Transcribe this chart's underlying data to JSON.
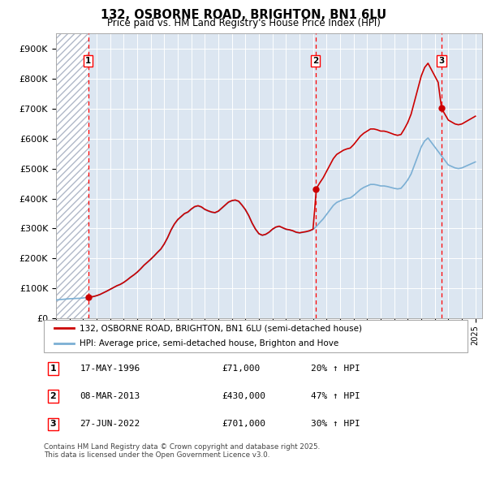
{
  "title1": "132, OSBORNE ROAD, BRIGHTON, BN1 6LU",
  "title2": "Price paid vs. HM Land Registry's House Price Index (HPI)",
  "legend_line1": "132, OSBORNE ROAD, BRIGHTON, BN1 6LU (semi-detached house)",
  "legend_line2": "HPI: Average price, semi-detached house, Brighton and Hove",
  "footer": "Contains HM Land Registry data © Crown copyright and database right 2025.\nThis data is licensed under the Open Government Licence v3.0.",
  "sale_color": "#cc0000",
  "hpi_color": "#7bafd4",
  "bg_color": "#dce6f1",
  "hatch_color": "#b8c8d8",
  "ylim": [
    0,
    950000
  ],
  "yticks": [
    0,
    100000,
    200000,
    300000,
    400000,
    500000,
    600000,
    700000,
    800000,
    900000
  ],
  "ytick_labels": [
    "£0",
    "£100K",
    "£200K",
    "£300K",
    "£400K",
    "£500K",
    "£600K",
    "£700K",
    "£800K",
    "£900K"
  ],
  "xmin": 1994.0,
  "xmax": 2025.5,
  "sales": [
    {
      "date": 1996.38,
      "price": 71000,
      "label": "1"
    },
    {
      "date": 2013.18,
      "price": 430000,
      "label": "2"
    },
    {
      "date": 2022.49,
      "price": 701000,
      "label": "3"
    }
  ],
  "annotation_rows": [
    {
      "label": "1",
      "date": "17-MAY-1996",
      "price": "£71,000",
      "change": "20% ↑ HPI"
    },
    {
      "label": "2",
      "date": "08-MAR-2013",
      "price": "£430,000",
      "change": "47% ↑ HPI"
    },
    {
      "label": "3",
      "date": "27-JUN-2022",
      "price": "£701,000",
      "change": "30% ↑ HPI"
    }
  ],
  "hpi_quarterly": {
    "years": [
      1994.0,
      1994.25,
      1994.5,
      1994.75,
      1995.0,
      1995.25,
      1995.5,
      1995.75,
      1996.0,
      1996.25,
      1996.5,
      1996.75,
      1997.0,
      1997.25,
      1997.5,
      1997.75,
      1998.0,
      1998.25,
      1998.5,
      1998.75,
      1999.0,
      1999.25,
      1999.5,
      1999.75,
      2000.0,
      2000.25,
      2000.5,
      2000.75,
      2001.0,
      2001.25,
      2001.5,
      2001.75,
      2002.0,
      2002.25,
      2002.5,
      2002.75,
      2003.0,
      2003.25,
      2003.5,
      2003.75,
      2004.0,
      2004.25,
      2004.5,
      2004.75,
      2005.0,
      2005.25,
      2005.5,
      2005.75,
      2006.0,
      2006.25,
      2006.5,
      2006.75,
      2007.0,
      2007.25,
      2007.5,
      2007.75,
      2008.0,
      2008.25,
      2008.5,
      2008.75,
      2009.0,
      2009.25,
      2009.5,
      2009.75,
      2010.0,
      2010.25,
      2010.5,
      2010.75,
      2011.0,
      2011.25,
      2011.5,
      2011.75,
      2012.0,
      2012.25,
      2012.5,
      2012.75,
      2013.0,
      2013.25,
      2013.5,
      2013.75,
      2014.0,
      2014.25,
      2014.5,
      2014.75,
      2015.0,
      2015.25,
      2015.5,
      2015.75,
      2016.0,
      2016.25,
      2016.5,
      2016.75,
      2017.0,
      2017.25,
      2017.5,
      2017.75,
      2018.0,
      2018.25,
      2018.5,
      2018.75,
      2019.0,
      2019.25,
      2019.5,
      2019.75,
      2020.0,
      2020.25,
      2020.5,
      2020.75,
      2021.0,
      2021.25,
      2021.5,
      2021.75,
      2022.0,
      2022.25,
      2022.5,
      2022.75,
      2023.0,
      2023.25,
      2023.5,
      2023.75,
      2024.0,
      2024.25,
      2024.5,
      2024.75,
      2025.0
    ],
    "values": [
      62000,
      63000,
      64000,
      65000,
      66000,
      66500,
      67000,
      67500,
      68500,
      70000,
      71500,
      73000,
      76000,
      80000,
      85500,
      91000,
      97000,
      103000,
      109000,
      113500,
      120000,
      128000,
      137000,
      145000,
      154000,
      165000,
      177000,
      187000,
      197000,
      208000,
      220000,
      231000,
      248000,
      269000,
      294000,
      314000,
      329000,
      339000,
      349000,
      354000,
      364000,
      372000,
      375000,
      371000,
      363000,
      358000,
      354000,
      352000,
      357000,
      367000,
      377000,
      387000,
      392000,
      394000,
      390000,
      377000,
      362000,
      342000,
      317000,
      297000,
      282000,
      277000,
      280000,
      287000,
      297000,
      304000,
      307000,
      302000,
      297000,
      295000,
      292000,
      287000,
      285000,
      287000,
      289000,
      292000,
      297000,
      307000,
      320000,
      332000,
      347000,
      362000,
      377000,
      387000,
      392000,
      397000,
      400000,
      402000,
      410000,
      420000,
      430000,
      437000,
      442000,
      447000,
      447000,
      445000,
      442000,
      442000,
      440000,
      437000,
      434000,
      432000,
      434000,
      447000,
      462000,
      482000,
      512000,
      542000,
      572000,
      592000,
      602000,
      587000,
      572000,
      557000,
      542000,
      527000,
      512000,
      507000,
      502000,
      500000,
      502000,
      507000,
      512000,
      517000,
      522000
    ]
  }
}
